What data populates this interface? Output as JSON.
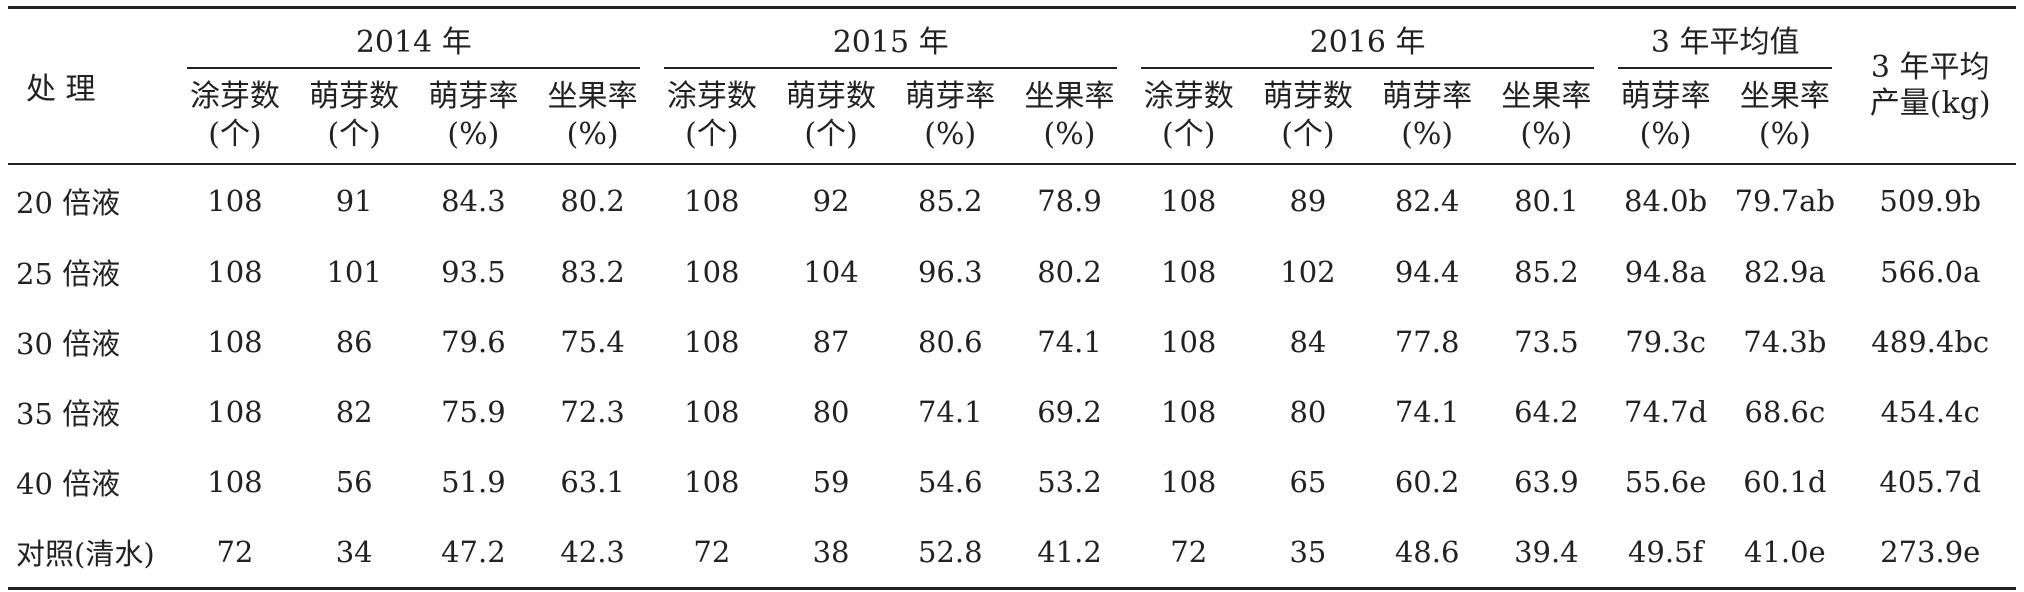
{
  "table": {
    "header": {
      "treatment": "处 理",
      "groups": [
        "2014 年",
        "2015 年",
        "2016 年",
        "3 年平均值"
      ],
      "yield_line1": "3 年平均",
      "yield_line2": "产量(kg)",
      "year_cols": [
        {
          "l1": "涂芽数",
          "l2": "(个)"
        },
        {
          "l1": "萌芽数",
          "l2": "(个)"
        },
        {
          "l1": "萌芽率",
          "l2": "(%)"
        },
        {
          "l1": "坐果率",
          "l2": "(%)"
        }
      ],
      "avg_cols": [
        {
          "l1": "萌芽率",
          "l2": "(%)"
        },
        {
          "l1": "坐果率",
          "l2": "(%)"
        }
      ]
    },
    "rows": [
      {
        "treatment": "20 倍液",
        "cells": [
          "108",
          "91",
          "84.3",
          "80.2",
          "108",
          "92",
          "85.2",
          "78.9",
          "108",
          "89",
          "82.4",
          "80.1",
          "84.0b",
          "79.7ab",
          "509.9b"
        ]
      },
      {
        "treatment": "25 倍液",
        "cells": [
          "108",
          "101",
          "93.5",
          "83.2",
          "108",
          "104",
          "96.3",
          "80.2",
          "108",
          "102",
          "94.4",
          "85.2",
          "94.8a",
          "82.9a",
          "566.0a"
        ]
      },
      {
        "treatment": "30 倍液",
        "cells": [
          "108",
          "86",
          "79.6",
          "75.4",
          "108",
          "87",
          "80.6",
          "74.1",
          "108",
          "84",
          "77.8",
          "73.5",
          "79.3c",
          "74.3b",
          "489.4bc"
        ]
      },
      {
        "treatment": "35 倍液",
        "cells": [
          "108",
          "82",
          "75.9",
          "72.3",
          "108",
          "80",
          "74.1",
          "69.2",
          "108",
          "80",
          "74.1",
          "64.2",
          "74.7d",
          "68.6c",
          "454.4c"
        ]
      },
      {
        "treatment": "40 倍液",
        "cells": [
          "108",
          "56",
          "51.9",
          "63.1",
          "108",
          "59",
          "54.6",
          "53.2",
          "108",
          "65",
          "60.2",
          "63.9",
          "55.6e",
          "60.1d",
          "405.7d"
        ]
      },
      {
        "treatment": "对照(清水)",
        "cells": [
          "72",
          "34",
          "47.2",
          "42.3",
          "72",
          "38",
          "52.8",
          "41.2",
          "72",
          "35",
          "48.6",
          "39.4",
          "49.5f",
          "41.0e",
          "273.9e"
        ]
      }
    ]
  }
}
